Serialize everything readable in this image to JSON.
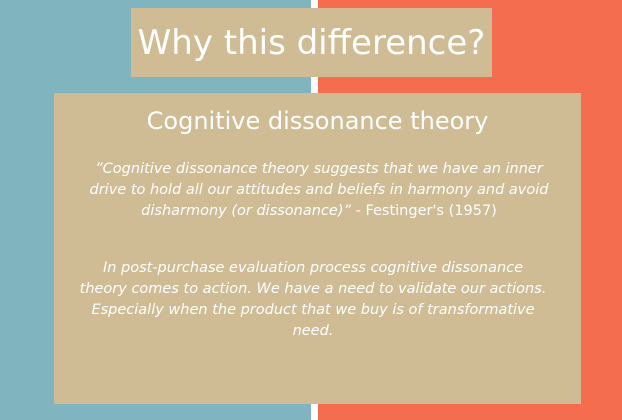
{
  "colors": {
    "left_panel": "#80b4bf",
    "right_panel": "#f36d4e",
    "divider": "#ffffff",
    "box": "#cfbc94",
    "text": "#ffffff"
  },
  "title": "Why this difference?",
  "card": {
    "heading": "Cognitive dissonance theory",
    "quote_text": "”Cognitive dissonance theory suggests that we have an inner drive to hold all our attitudes and beliefs in harmony and avoid disharmony (or dissonance)”",
    "quote_attribution": " - Festinger's (1957)",
    "body": "In post-purchase evaluation process cognitive dissonance theory comes to action. We have a need to validate our actions. Especially when the product that we buy is of transformative need."
  }
}
